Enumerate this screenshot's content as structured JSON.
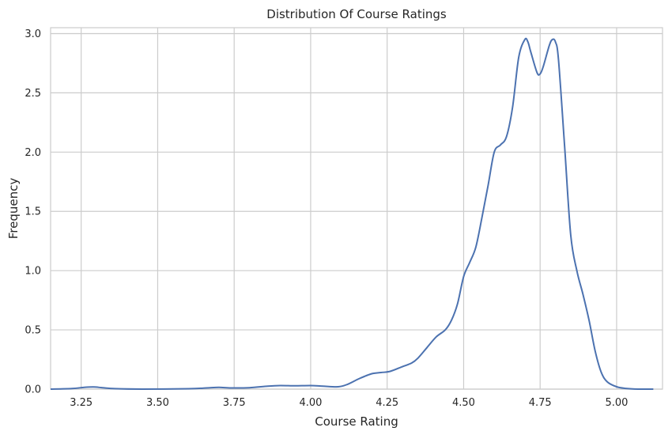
{
  "chart_data": {
    "type": "line",
    "title": "Distribution Of Course Ratings",
    "xlabel": "Course Rating",
    "ylabel": "Frequency",
    "xlim": [
      3.15,
      5.15
    ],
    "ylim": [
      0,
      3.05
    ],
    "xticks": [
      3.25,
      3.5,
      3.75,
      4.0,
      4.25,
      4.5,
      4.75,
      5.0
    ],
    "xtick_labels": [
      "3.25",
      "3.50",
      "3.75",
      "4.00",
      "4.25",
      "4.50",
      "4.75",
      "5.00"
    ],
    "yticks": [
      0.0,
      0.5,
      1.0,
      1.5,
      2.0,
      2.5,
      3.0
    ],
    "ytick_labels": [
      "0.0",
      "0.5",
      "1.0",
      "1.5",
      "2.0",
      "2.5",
      "3.0"
    ],
    "grid": true,
    "series": [
      {
        "color": "#4c72b0",
        "x": [
          3.15,
          3.22,
          3.26,
          3.29,
          3.32,
          3.36,
          3.45,
          3.6,
          3.66,
          3.7,
          3.74,
          3.8,
          3.86,
          3.9,
          3.95,
          4.0,
          4.04,
          4.09,
          4.12,
          4.16,
          4.2,
          4.23,
          4.26,
          4.3,
          4.33,
          4.35,
          4.38,
          4.41,
          4.44,
          4.46,
          4.48,
          4.5,
          4.52,
          4.54,
          4.56,
          4.58,
          4.6,
          4.62,
          4.64,
          4.66,
          4.68,
          4.7,
          4.71,
          4.72,
          4.74,
          4.75,
          4.76,
          4.78,
          4.79,
          4.8,
          4.81,
          4.83,
          4.85,
          4.87,
          4.89,
          4.91,
          4.93,
          4.95,
          4.97,
          5.0,
          5.03,
          5.07,
          5.12
        ],
        "y": [
          0.0,
          0.005,
          0.015,
          0.018,
          0.012,
          0.004,
          0.0,
          0.003,
          0.01,
          0.015,
          0.01,
          0.012,
          0.025,
          0.03,
          0.028,
          0.03,
          0.025,
          0.02,
          0.04,
          0.09,
          0.13,
          0.14,
          0.15,
          0.19,
          0.22,
          0.26,
          0.35,
          0.44,
          0.5,
          0.58,
          0.72,
          0.95,
          1.07,
          1.2,
          1.45,
          1.72,
          2.0,
          2.06,
          2.13,
          2.38,
          2.8,
          2.95,
          2.93,
          2.84,
          2.67,
          2.66,
          2.72,
          2.9,
          2.95,
          2.93,
          2.78,
          2.05,
          1.3,
          1.0,
          0.8,
          0.58,
          0.32,
          0.14,
          0.06,
          0.02,
          0.006,
          0.0,
          0.0
        ]
      }
    ]
  }
}
